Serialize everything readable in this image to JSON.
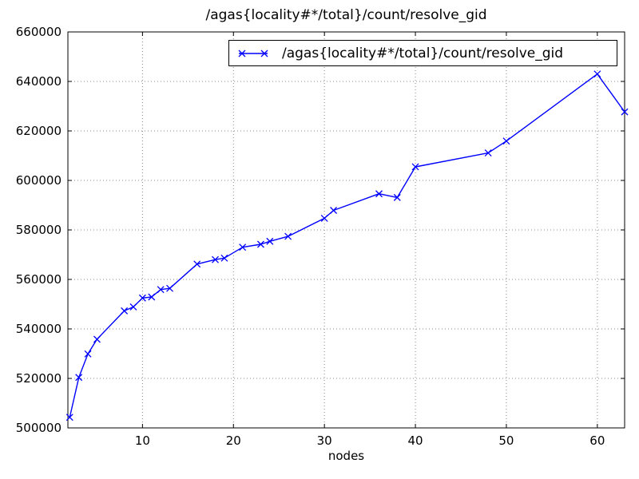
{
  "colors": {
    "line": "#0000ff",
    "grid": "#888888",
    "axis": "#000000",
    "background": "#ffffff",
    "text": "#000000"
  },
  "chart_data": {
    "type": "line",
    "title": "/agas{locality#*/total}/count/resolve_gid",
    "xlabel": "nodes",
    "ylabel": "",
    "grid": true,
    "marker": "x",
    "line_color": "#0000ff",
    "legend_position": "upper right",
    "xlim": [
      1.8,
      63
    ],
    "ylim": [
      500000,
      660000
    ],
    "xticks": [
      10,
      20,
      30,
      40,
      50,
      60
    ],
    "xtick_labels": [
      "10",
      "20",
      "30",
      "40",
      "50",
      "60"
    ],
    "yticks": [
      500000,
      520000,
      540000,
      560000,
      580000,
      600000,
      620000,
      640000,
      660000
    ],
    "ytick_labels": [
      "500000",
      "520000",
      "540000",
      "560000",
      "580000",
      "600000",
      "620000",
      "640000",
      "660000"
    ],
    "series": [
      {
        "name": "/agas{locality#*/total}/count/resolve_gid",
        "x": [
          2,
          3,
          4,
          5,
          8,
          9,
          10,
          11,
          12,
          13,
          16,
          18,
          19,
          21,
          23,
          24,
          26,
          30,
          31,
          36,
          38,
          40,
          48,
          50,
          60,
          63
        ],
        "y": [
          504300,
          520400,
          529900,
          535800,
          547300,
          548900,
          552500,
          552900,
          555900,
          556400,
          566200,
          568000,
          568600,
          573000,
          574200,
          575400,
          577400,
          584700,
          587900,
          594600,
          593100,
          605500,
          611100,
          615900,
          643000,
          627700
        ]
      }
    ]
  }
}
